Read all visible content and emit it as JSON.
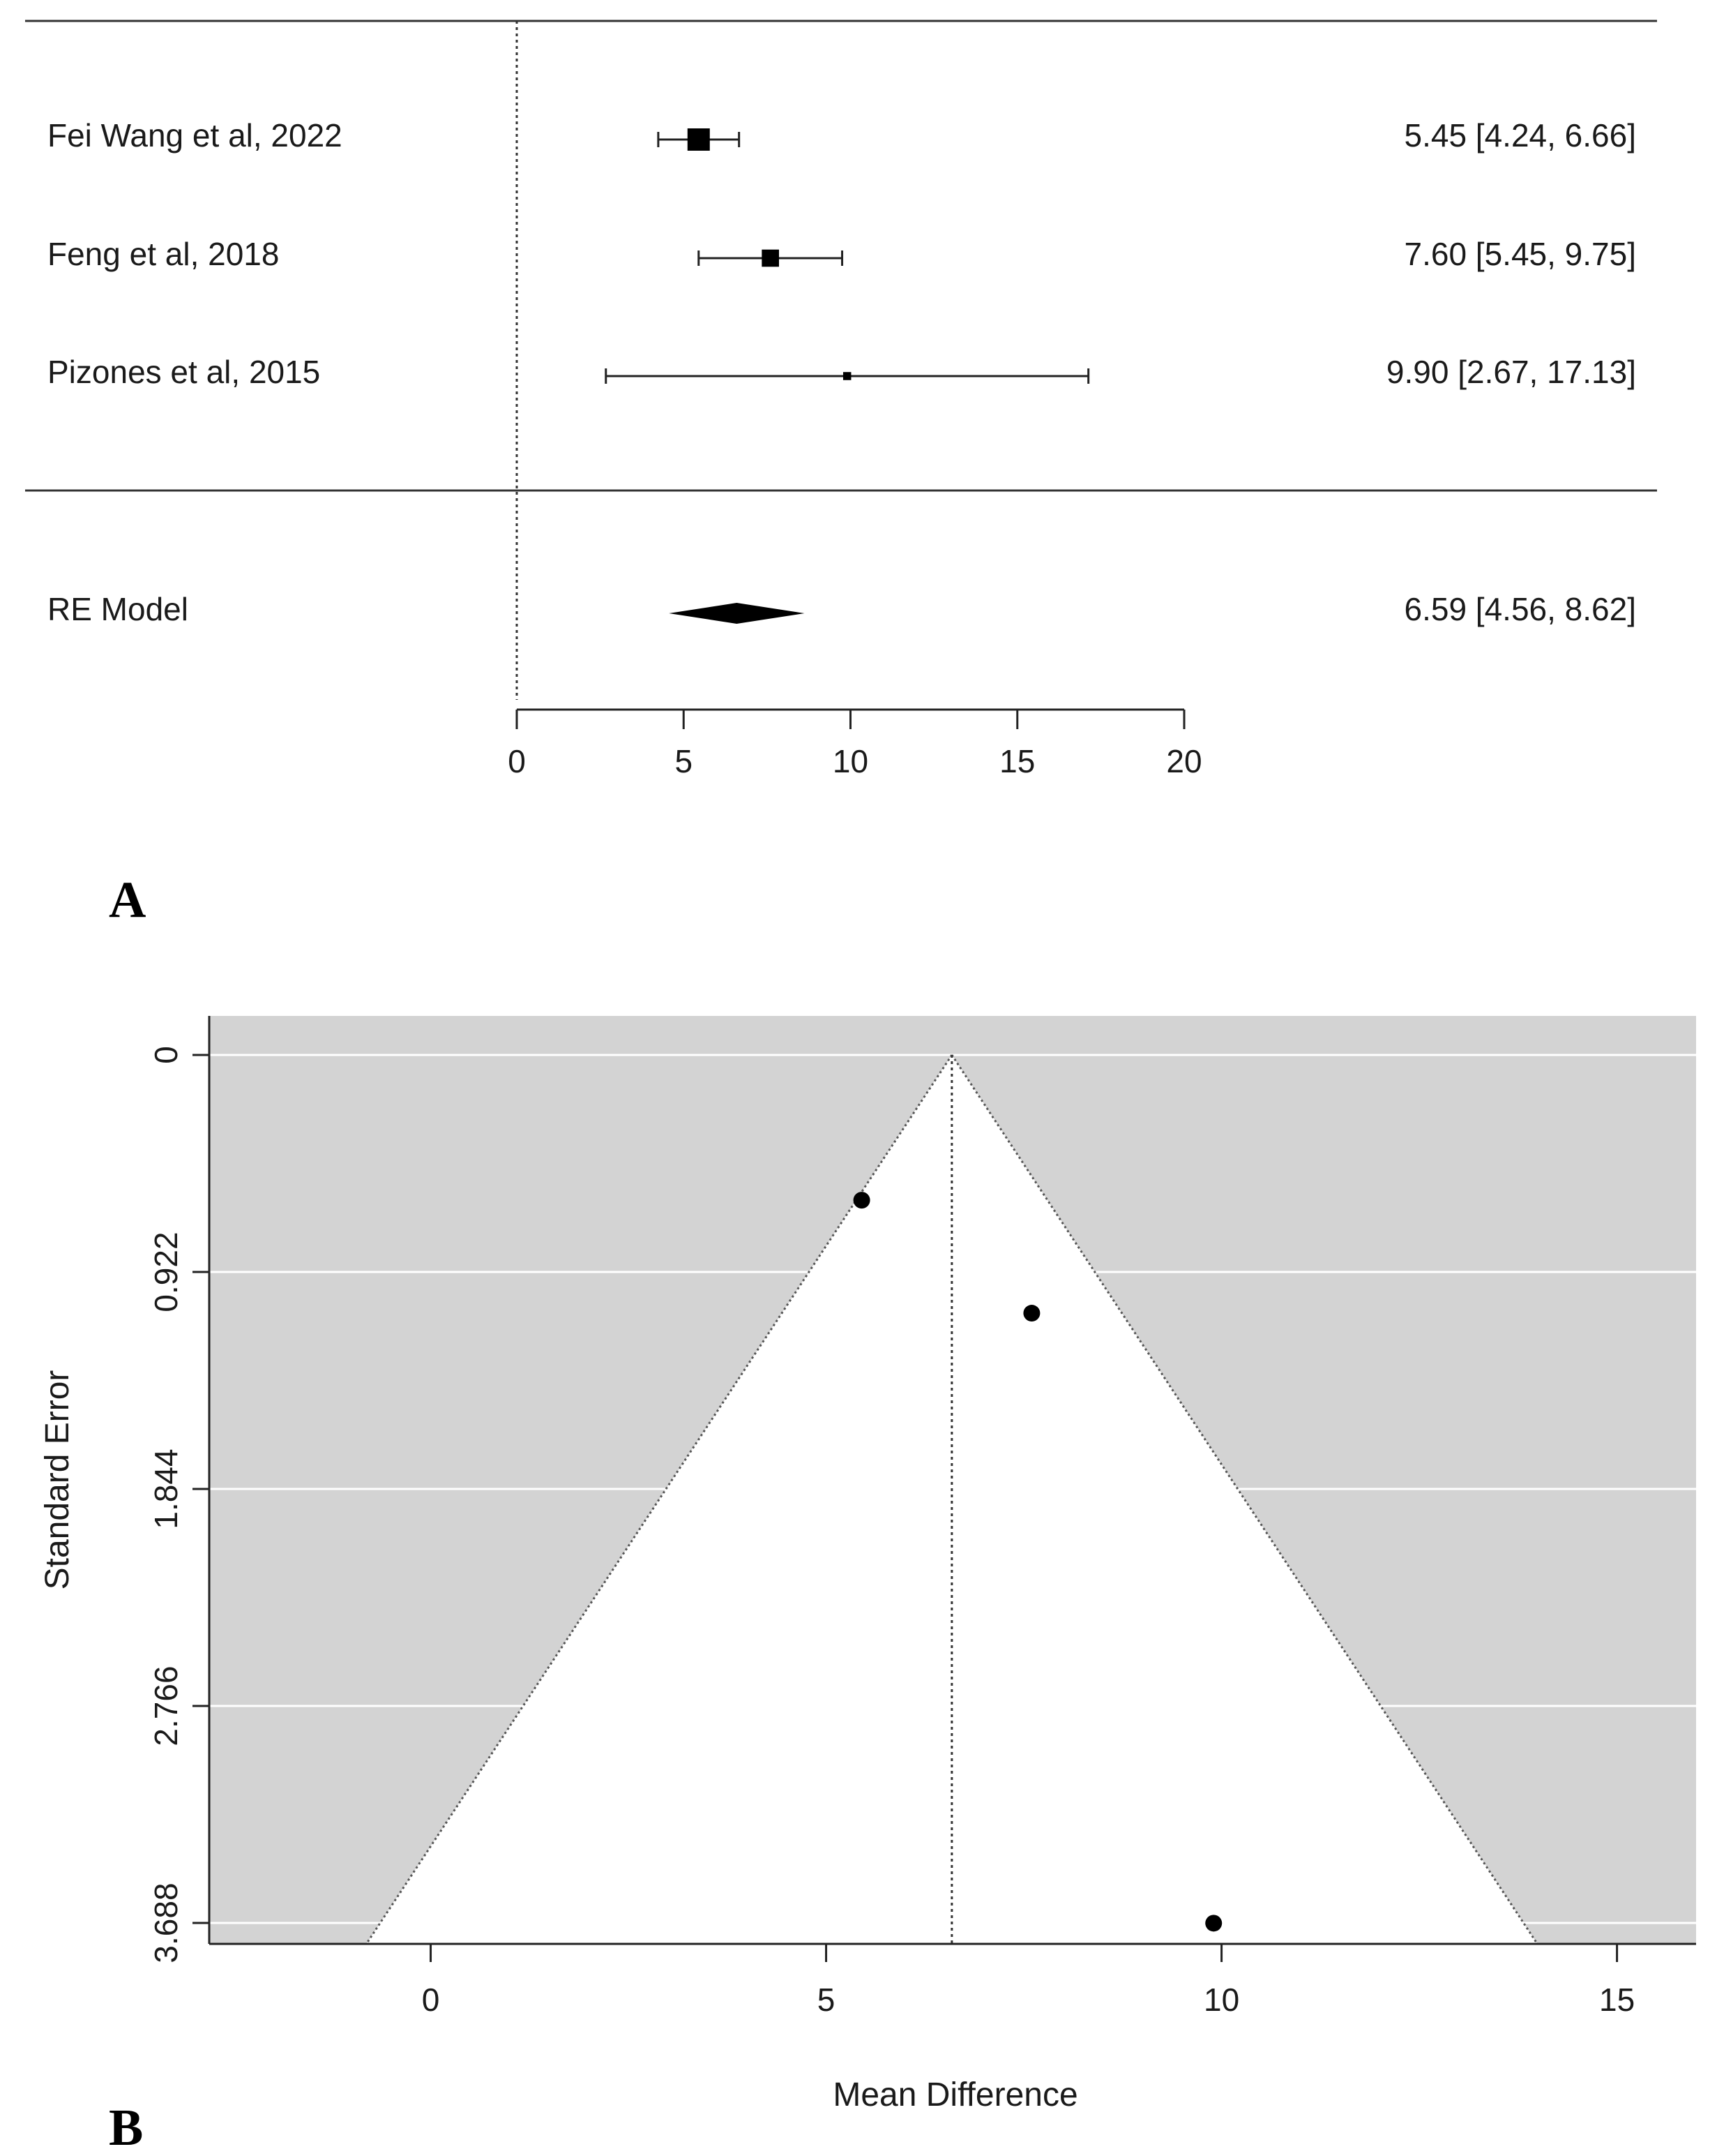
{
  "colors": {
    "funnel_bg": "#d3d3d3",
    "funnel_inside": "#ffffff",
    "gridline": "#ffffff",
    "ink": "#000000"
  },
  "chart_data": [
    {
      "type": "forest",
      "panel_label": "A",
      "reference_line": 0,
      "xlim": [
        0,
        20
      ],
      "xticks": [
        0,
        5,
        10,
        15,
        20
      ],
      "studies": [
        {
          "label": "Fei Wang et al, 2022",
          "estimate": 5.45,
          "lower": 4.24,
          "upper": 6.66,
          "ci_text": "5.45 [4.24,  6.66]",
          "weight_rel": 1.0
        },
        {
          "label": "Feng et al, 2018",
          "estimate": 7.6,
          "lower": 5.45,
          "upper": 9.75,
          "ci_text": "7.60 [5.45,  9.75]",
          "weight_rel": 0.77
        },
        {
          "label": "Pizones et al, 2015",
          "estimate": 9.9,
          "lower": 2.67,
          "upper": 17.13,
          "ci_text": "9.90 [2.67, 17.13]",
          "weight_rel": 0.36
        }
      ],
      "summary": {
        "label": "RE Model",
        "estimate": 6.59,
        "lower": 4.56,
        "upper": 8.62,
        "ci_text": "6.59 [4.56,  8.62]"
      }
    },
    {
      "type": "scatter",
      "subtype": "funnel",
      "panel_label": "B",
      "xlabel": "Mean Difference",
      "ylabel": "Standard Error",
      "xlim": [
        -2.8,
        16
      ],
      "ylim": [
        0,
        3.83
      ],
      "y_reversed": true,
      "xticks": [
        0,
        5,
        10,
        15
      ],
      "yticks": [
        "0",
        "0.922",
        "1.844",
        "2.766",
        "3.688"
      ],
      "center": 6.59,
      "funnel_z": 1.96,
      "points": [
        {
          "x": 5.45,
          "y": 0.617
        },
        {
          "x": 7.6,
          "y": 1.097
        },
        {
          "x": 9.9,
          "y": 3.689
        }
      ]
    }
  ]
}
